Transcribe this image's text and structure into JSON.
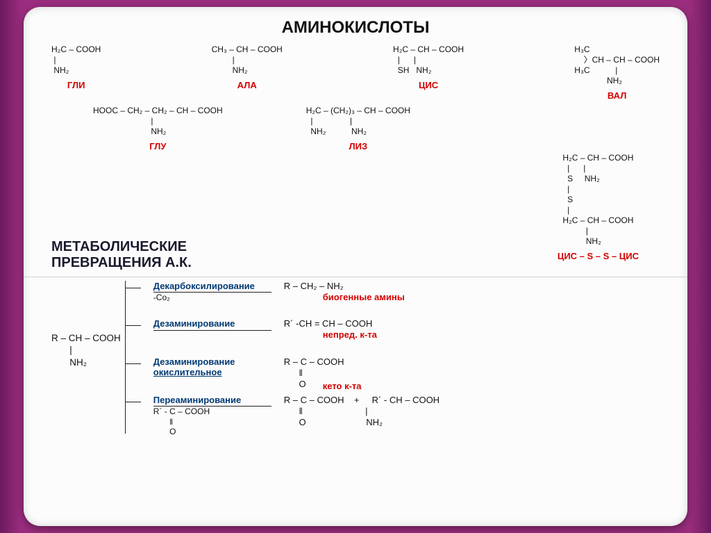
{
  "title": "АМИНОКИСЛОТЫ",
  "amino_acids_row1": [
    {
      "name": "gly",
      "label": "ГЛИ",
      "formula": "H₂C – COOH\n |\n NH₂"
    },
    {
      "name": "ala",
      "label": "АЛА",
      "formula": "CH₃ – CH – COOH\n         |\n         NH₂"
    },
    {
      "name": "cys",
      "label": "ЦИС",
      "formula": "H₂C – CH – COOH\n  |      |\n  SH   NH₂"
    },
    {
      "name": "val",
      "label": "ВАЛ",
      "formula": "H₃C\n    〉CH – CH – COOH\nH₃C           |\n              NH₂"
    }
  ],
  "amino_acids_row2": [
    {
      "name": "glu",
      "label": "ГЛУ",
      "formula": "HOOC – CH₂ – CH₂ – CH – COOH\n                         |\n                         NH₂"
    },
    {
      "name": "lys",
      "label": "ЛИЗ",
      "formula": "H₂C – (CH₂)₃ – CH – COOH\n  |                |\n  NH₂           NH₂"
    }
  ],
  "cystine": {
    "label": "ЦИС – S – S – ЦИС",
    "formula": "H₂C – CH – COOH\n  |      |\n  S     NH₂\n  |\n  S\n  |\nH₂C – CH – COOH\n          |\n          NH₂"
  },
  "subtitle_l1": "МЕТАБОЛИЧЕСКИЕ",
  "subtitle_l2": "ПРЕВРАЩЕНИЯ А.К.",
  "reactant": "R – CH – COOH\n       |\n       NH₂",
  "colors": {
    "accent_red": "#d40000",
    "accent_blue": "#003974",
    "text": "#111"
  },
  "transforms": [
    {
      "label": "Декарбоксилирование",
      "sub": "-Co₂",
      "product": "R – CH₂ – NH₂",
      "product_label": "биогенные амины"
    },
    {
      "label": "Дезаминирование",
      "sub": "",
      "product": "R´ -CH = CH – COOH",
      "product_label": "непред. к-та"
    },
    {
      "label": "Дезаминирование\nокислительное",
      "sub": "",
      "product": "R – C – COOH\n      ‖\n      O",
      "product_label": "кето к-та"
    },
    {
      "label": "Переаминирование",
      "sub": "R´ - C – COOH\n       ‖\n       O",
      "product": "R – C – COOH    +     R´ - CH – COOH\n      ‖                         |\n      O                        NH₂",
      "product_label": ""
    }
  ]
}
